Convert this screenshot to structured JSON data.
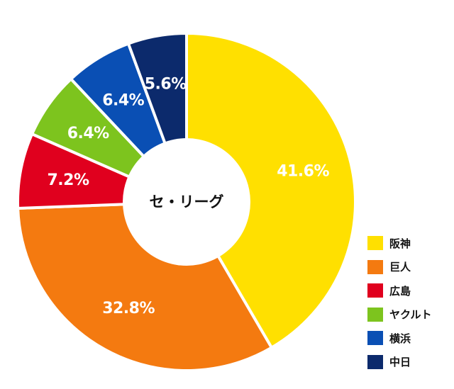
{
  "chart_data": {
    "type": "pie",
    "center_label": "セ・リーグ",
    "slices": [
      {
        "name": "阪神",
        "value": 41.6,
        "label": "41.6%",
        "color": "#FFE000"
      },
      {
        "name": "巨人",
        "value": 32.8,
        "label": "32.8%",
        "color": "#F47A10"
      },
      {
        "name": "広島",
        "value": 7.2,
        "label": "7.2%",
        "color": "#E0001E"
      },
      {
        "name": "ヤクルト",
        "value": 6.4,
        "label": "6.4%",
        "color": "#7DC41E"
      },
      {
        "name": "横浜",
        "value": 6.4,
        "label": "6.4%",
        "color": "#0A4FB4"
      },
      {
        "name": "中日",
        "value": 5.6,
        "label": "5.6%",
        "color": "#0C2A6C"
      }
    ],
    "legend_placement": "bottom-right"
  }
}
